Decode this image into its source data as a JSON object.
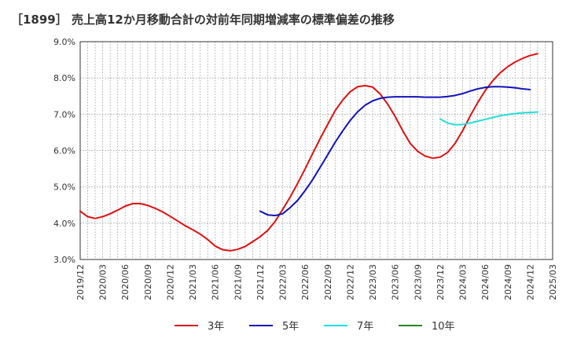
{
  "chart_data": {
    "type": "line",
    "title": "［1899］ 売上高12か月移動合計の対前年同期増減率の標準偏差の推移",
    "xlabel": "",
    "ylabel": "",
    "ylim": [
      3.0,
      9.0
    ],
    "x_tick_labels": [
      "2019/12",
      "2020/03",
      "2020/06",
      "2020/09",
      "2020/12",
      "2021/03",
      "2021/06",
      "2021/09",
      "2021/12",
      "2022/03",
      "2022/06",
      "2022/09",
      "2022/12",
      "2023/03",
      "2023/06",
      "2023/09",
      "2023/12",
      "2024/03",
      "2024/06",
      "2024/09",
      "2024/12",
      "2025/03"
    ],
    "y_tick_labels": [
      "3.0%",
      "4.0%",
      "5.0%",
      "6.0%",
      "7.0%",
      "8.0%",
      "9.0%"
    ],
    "y_ticks": [
      3,
      4,
      5,
      6,
      7,
      8,
      9
    ],
    "grid": true,
    "legend_position": "bottom",
    "series": [
      {
        "name": "3年",
        "color": "#dd1111",
        "start": 0,
        "values": [
          4.33,
          4.18,
          4.13,
          4.18,
          4.26,
          4.36,
          4.47,
          4.54,
          4.54,
          4.49,
          4.41,
          4.31,
          4.19,
          4.06,
          3.93,
          3.82,
          3.7,
          3.55,
          3.37,
          3.27,
          3.24,
          3.28,
          3.36,
          3.49,
          3.63,
          3.8,
          4.05,
          4.38,
          4.72,
          5.1,
          5.5,
          5.92,
          6.33,
          6.72,
          7.1,
          7.39,
          7.62,
          7.76,
          7.79,
          7.75,
          7.56,
          7.28,
          6.94,
          6.55,
          6.2,
          5.98,
          5.85,
          5.79,
          5.82,
          5.95,
          6.2,
          6.55,
          6.95,
          7.32,
          7.65,
          7.92,
          8.14,
          8.31,
          8.44,
          8.54,
          8.62,
          8.67
        ]
      },
      {
        "name": "5年",
        "color": "#1111bb",
        "start": 24,
        "values": [
          4.33,
          4.23,
          4.21,
          4.26,
          4.43,
          4.63,
          4.9,
          5.2,
          5.54,
          5.88,
          6.23,
          6.54,
          6.83,
          7.07,
          7.25,
          7.37,
          7.44,
          7.47,
          7.48,
          7.48,
          7.48,
          7.48,
          7.47,
          7.47,
          7.47,
          7.49,
          7.52,
          7.57,
          7.64,
          7.7,
          7.74,
          7.76,
          7.76,
          7.75,
          7.73,
          7.7,
          7.68
        ]
      },
      {
        "name": "7年",
        "color": "#22dddd",
        "start": 48,
        "values": [
          6.87,
          6.76,
          6.71,
          6.72,
          6.76,
          6.81,
          6.86,
          6.91,
          6.96,
          6.99,
          7.02,
          7.04,
          7.05,
          7.06
        ]
      },
      {
        "name": "10年",
        "color": "#228822",
        "start": 0,
        "values": []
      }
    ]
  }
}
